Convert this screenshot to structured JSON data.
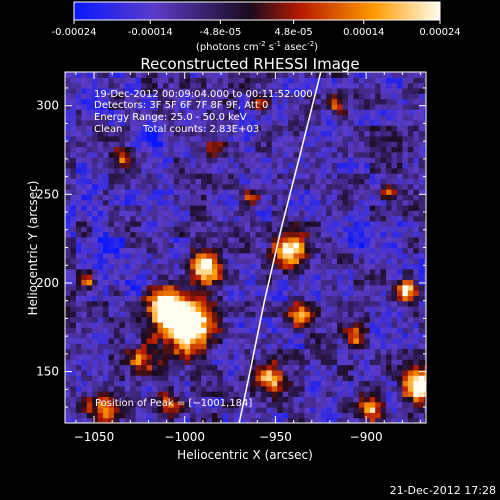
{
  "colorbar": {
    "ticks": [
      "-0.00024",
      "-0.00014",
      "-4.8e-05",
      "4.8e-05",
      "0.00014",
      "0.00024"
    ],
    "tick_values": [
      -0.00024,
      -0.00014,
      -4.8e-05,
      4.8e-05,
      0.00014,
      0.00024
    ],
    "range": [
      -0.00024,
      0.00024
    ],
    "colors": [
      "#0a18ff",
      "#5a3cc8",
      "#1a0b1e",
      "#b71a00",
      "#ff9a00",
      "#fffef0"
    ]
  },
  "chart_data": {
    "type": "heatmap",
    "title": "Reconstructed RHESSI Image",
    "xlabel": "Heliocentric X (arcsec)",
    "ylabel": "Heliocentric Y (arcsec)",
    "unit_label": "(photons cm",
    "unit_label_exp1": "-2",
    "unit_label_mid": " s",
    "unit_label_exp2": "-1",
    "unit_label_end": " asec",
    "unit_label_exp3": "-2",
    "unit_label_close": ")",
    "xlim": [
      -1066,
      -867
    ],
    "ylim": [
      121,
      319
    ],
    "xticks": [
      -1050,
      -1000,
      -950,
      -900
    ],
    "xtick_labels": [
      "−1050",
      "−1000",
      "−950",
      "−900"
    ],
    "yticks": [
      150,
      200,
      250,
      300
    ],
    "ytick_labels": [
      "150",
      "200",
      "250",
      "300"
    ],
    "limb_points": [
      [
        -970,
        121
      ],
      [
        -964,
        150
      ],
      [
        -956,
        190
      ],
      [
        -947,
        230
      ],
      [
        -937,
        270
      ],
      [
        -925,
        319
      ]
    ],
    "peak": [
      -1001,
      184
    ],
    "overlay": {
      "time": "19-Dec-2012 00:09:04.000 to 00:11:52.000",
      "detectors": "Detectors: 3F 5F 6F 7F 8F 9F, Att 0",
      "energy": "Energy Range: 25.0 - 50.0 keV",
      "method": "Clean",
      "counts": "Total counts: 2.83E+03",
      "peak_label": "Position of Peak = [−1001,184]"
    }
  },
  "footer": {
    "timestamp": "21-Dec-2012 17:28"
  }
}
